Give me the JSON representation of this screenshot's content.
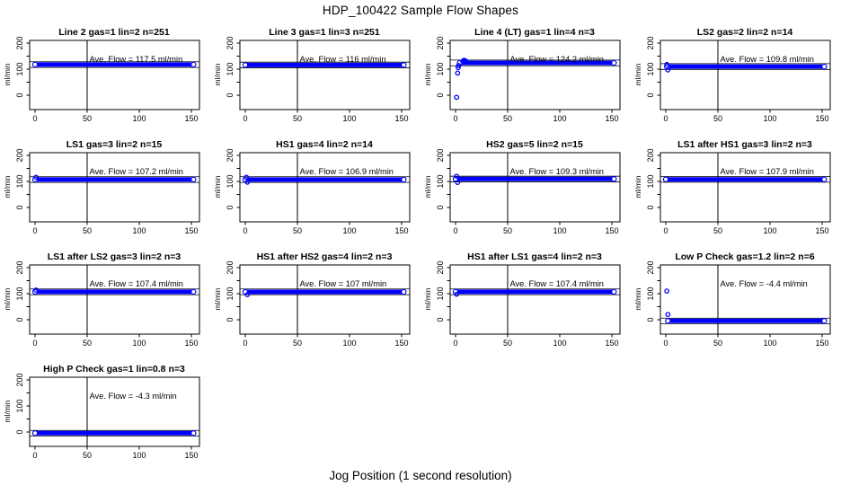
{
  "figure": {
    "title": "HDP_100422  Sample Flow Shapes",
    "xlabel": "Jog Position (1 second resolution)"
  },
  "colors": {
    "point": "#0000ff",
    "axis": "#000000",
    "background": "#ffffff"
  },
  "chart_data": {
    "type": "scatter",
    "title": "HDP_100422  Sample Flow Shapes",
    "xlabel": "Jog Position (1 second resolution)",
    "ylabel": "ml/min",
    "xlim": [
      -5,
      157
    ],
    "ylim": [
      -55,
      210
    ],
    "x_ticks": [
      0,
      50,
      100,
      150
    ],
    "y_ticks": [
      0,
      50,
      100,
      150,
      200
    ],
    "y_tick_labels": [
      "0",
      "100",
      "200"
    ],
    "y_tick_label_values": [
      0,
      100,
      200
    ],
    "vline_x": 50,
    "grid": false,
    "point_color": "#0000ff",
    "panels": [
      {
        "title": "Line 2 gas=1 lin=2 n=251",
        "gas": "1",
        "lin": "2",
        "n": "251",
        "ave_flow": 117.5,
        "ave_text": "Ave. Flow =  117.5  ml/min",
        "band": {
          "x0": 0,
          "x1": 152,
          "y": 117.5
        },
        "ref_lines": [
          106.5,
          128.5
        ],
        "outliers": []
      },
      {
        "title": "Line 3 gas=1 lin=3 n=251",
        "gas": "1",
        "lin": "3",
        "n": "251",
        "ave_flow": 116,
        "ave_text": "Ave. Flow =  116  ml/min",
        "band": {
          "x0": 0,
          "x1": 152,
          "y": 116
        },
        "ref_lines": [
          105,
          127
        ],
        "outliers": []
      },
      {
        "title": "Line 4 (LT) gas=1 lin=4 n=3",
        "gas": "1",
        "lin": "4",
        "n": "3",
        "ave_flow": 124.2,
        "ave_text": "Ave. Flow =  124.2  ml/min",
        "band": {
          "x0": 4,
          "x1": 152,
          "y": 124.2
        },
        "ref_lines": [
          113,
          135
        ],
        "outliers": [
          [
            1,
            -8
          ],
          [
            2,
            85
          ],
          [
            2.5,
            106
          ],
          [
            3,
            114
          ],
          [
            7,
            130
          ],
          [
            8,
            134
          ],
          [
            9,
            133
          ],
          [
            10,
            130
          ]
        ]
      },
      {
        "title": "LS2 gas=2 lin=2 n=14",
        "gas": "2",
        "lin": "2",
        "n": "14",
        "ave_flow": 109.8,
        "ave_text": "Ave. Flow =  109.8  ml/min",
        "band": {
          "x0": 1,
          "x1": 152,
          "y": 109.8
        },
        "ref_lines": [
          99,
          121
        ],
        "outliers": [
          [
            1,
            118
          ],
          [
            2,
            97
          ]
        ]
      },
      {
        "title": "LS1 gas=3 lin=2 n=15",
        "gas": "3",
        "lin": "2",
        "n": "15",
        "ave_flow": 107.2,
        "ave_text": "Ave. Flow =  107.2  ml/min",
        "band": {
          "x0": 0,
          "x1": 152,
          "y": 107.2
        },
        "ref_lines": [
          96,
          118
        ],
        "outliers": [
          [
            1,
            116
          ]
        ]
      },
      {
        "title": "HS1 gas=4 lin=2 n=14",
        "gas": "4",
        "lin": "2",
        "n": "14",
        "ave_flow": 106.9,
        "ave_text": "Ave. Flow =  106.9  ml/min",
        "band": {
          "x0": 0,
          "x1": 152,
          "y": 106.9
        },
        "ref_lines": [
          96,
          118
        ],
        "outliers": [
          [
            1,
            116
          ],
          [
            2,
            97
          ]
        ]
      },
      {
        "title": "HS2 gas=5 lin=2 n=15",
        "gas": "5",
        "lin": "2",
        "n": "15",
        "ave_flow": 109.3,
        "ave_text": "Ave. Flow =  109.3  ml/min",
        "band": {
          "x0": 0,
          "x1": 152,
          "y": 109.3
        },
        "ref_lines": [
          98,
          120
        ],
        "outliers": [
          [
            1,
            120
          ],
          [
            2,
            96
          ]
        ]
      },
      {
        "title": "LS1 after HS1 gas=3 lin=2 n=3",
        "gas": "3",
        "lin": "2",
        "n": "3",
        "ave_flow": 107.9,
        "ave_text": "Ave. Flow =  107.9  ml/min",
        "band": {
          "x0": 0,
          "x1": 152,
          "y": 107.9
        },
        "ref_lines": [
          97,
          119
        ],
        "outliers": []
      },
      {
        "title": "LS1 after LS2 gas=3 lin=2 n=3",
        "gas": "3",
        "lin": "2",
        "n": "3",
        "ave_flow": 107.4,
        "ave_text": "Ave. Flow =  107.4  ml/min",
        "band": {
          "x0": 0,
          "x1": 152,
          "y": 107.4
        },
        "ref_lines": [
          96,
          118
        ],
        "outliers": [
          [
            1,
            114
          ]
        ]
      },
      {
        "title": "HS1 after HS2 gas=4 lin=2 n=3",
        "gas": "4",
        "lin": "2",
        "n": "3",
        "ave_flow": 107,
        "ave_text": "Ave. Flow =  107  ml/min",
        "band": {
          "x0": 0,
          "x1": 152,
          "y": 107
        },
        "ref_lines": [
          96,
          118
        ],
        "outliers": [
          [
            2,
            96
          ]
        ]
      },
      {
        "title": "HS1 after LS1 gas=4 lin=2 n=3",
        "gas": "4",
        "lin": "2",
        "n": "3",
        "ave_flow": 107.4,
        "ave_text": "Ave. Flow =  107.4  ml/min",
        "band": {
          "x0": 0,
          "x1": 152,
          "y": 107.4
        },
        "ref_lines": [
          96,
          118
        ],
        "outliers": [
          [
            1,
            98
          ]
        ]
      },
      {
        "title": "Low P Check gas=1.2 lin=2 n=6",
        "gas": "1.2",
        "lin": "2",
        "n": "6",
        "ave_flow": -4.4,
        "ave_text": "Ave. Flow =  -4.4  ml/min",
        "band": {
          "x0": 2,
          "x1": 152,
          "y": -4.4
        },
        "ref_lines": [
          -15,
          6
        ],
        "outliers": [
          [
            1,
            110
          ],
          [
            2,
            20
          ]
        ]
      },
      {
        "title": "High P Check gas=1 lin=0.8 n=3",
        "gas": "1",
        "lin": "0.8",
        "n": "3",
        "ave_flow": -4.3,
        "ave_text": "Ave. Flow =  -4.3  ml/min",
        "band": {
          "x0": 0,
          "x1": 152,
          "y": -4.3
        },
        "ref_lines": [
          -15,
          6
        ],
        "outliers": []
      }
    ]
  }
}
